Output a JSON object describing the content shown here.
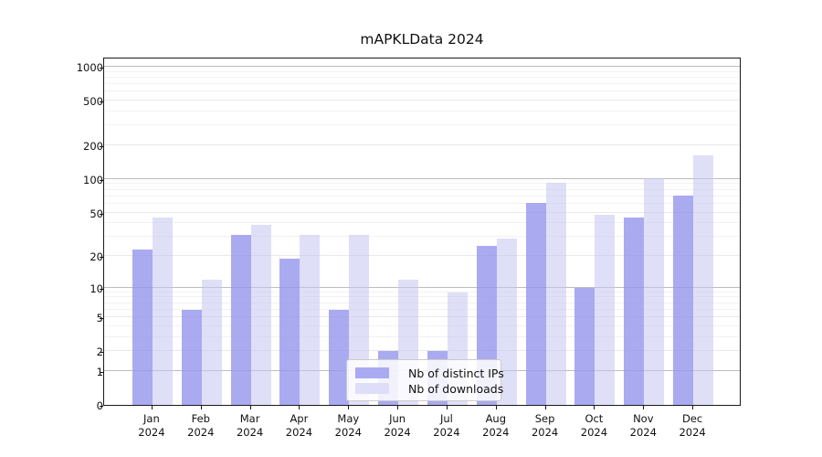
{
  "title": "mAPKLData 2024",
  "chart_data": {
    "type": "bar",
    "title": "mAPKLData 2024",
    "categories": [
      "Jan",
      "Feb",
      "Mar",
      "Apr",
      "May",
      "Jun",
      "Jul",
      "Aug",
      "Sep",
      "Oct",
      "Nov",
      "Dec"
    ],
    "year_label": "2024",
    "series": [
      {
        "name": "Nb of distinct IPs",
        "color": "#aaaaf3",
        "values": [
          23,
          6,
          31,
          19,
          6,
          2,
          2,
          25,
          61,
          10,
          45,
          71
        ]
      },
      {
        "name": "Nb of downloads",
        "color": "#dedef8",
        "values": [
          45,
          12,
          39,
          31,
          31,
          12,
          9,
          29,
          93,
          48,
          101,
          163
        ]
      }
    ],
    "xlabel": "",
    "ylabel": "",
    "yscale": "log1p",
    "y_ticks": [
      0,
      1,
      2,
      5,
      10,
      20,
      50,
      100,
      200,
      500,
      1000
    ],
    "y_minor_ticks": [
      3,
      4,
      6,
      7,
      8,
      9,
      30,
      40,
      60,
      70,
      80,
      90,
      300,
      400,
      600,
      700,
      800,
      900
    ],
    "ylim": [
      0,
      1230
    ],
    "grid": true,
    "legend_position": "inside-bottom-center"
  }
}
